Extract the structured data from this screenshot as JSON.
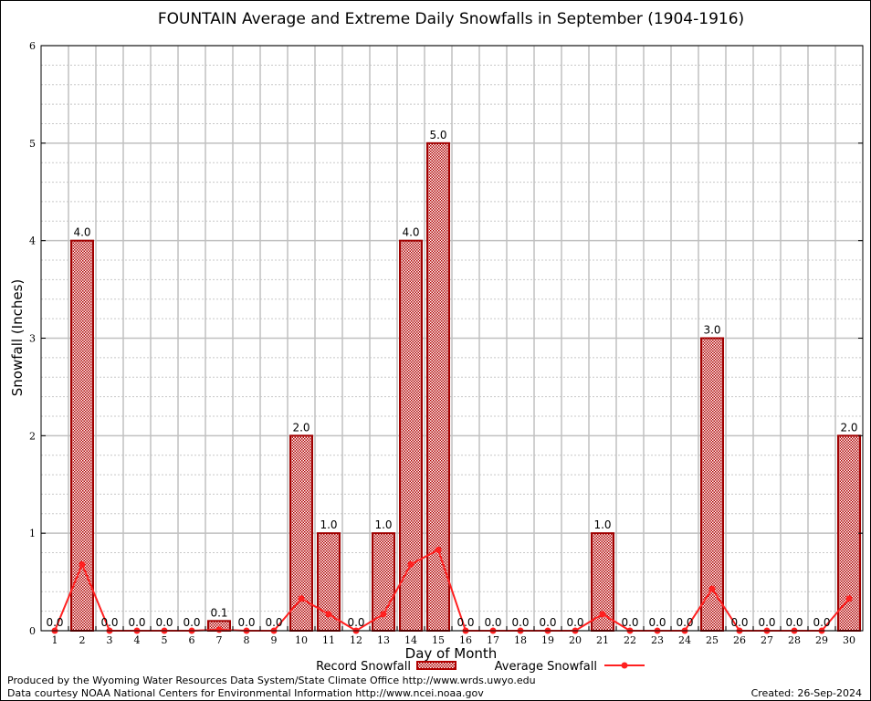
{
  "chart_data": {
    "type": "bar",
    "title": "FOUNTAIN Average and Extreme Daily Snowfalls in September (1904-1916)",
    "xlabel": "Day of Month",
    "ylabel": "Snowfall (Inches)",
    "ylim": [
      0,
      6
    ],
    "yticks": [
      0,
      1,
      2,
      3,
      4,
      5,
      6
    ],
    "grid": true,
    "legend_position": "bottom",
    "categories": [
      1,
      2,
      3,
      4,
      5,
      6,
      7,
      8,
      9,
      10,
      11,
      12,
      13,
      14,
      15,
      16,
      17,
      18,
      19,
      20,
      21,
      22,
      23,
      24,
      25,
      26,
      27,
      28,
      29,
      30
    ],
    "series": [
      {
        "name": "Record Snowfall",
        "type": "bar",
        "color": "#b00000",
        "values": [
          0,
          4,
          0,
          0,
          0,
          0,
          0.1,
          0,
          0,
          2,
          1,
          0,
          1,
          4,
          5,
          0,
          0,
          0,
          0,
          0,
          1,
          0,
          0,
          0,
          3,
          0,
          0,
          0,
          0,
          2
        ],
        "labels": [
          "0.0",
          "4.0",
          "0.0",
          "0.0",
          "0.0",
          "0.0",
          "0.1",
          "0.0",
          "0.0",
          "2.0",
          "1.0",
          "0.0",
          "1.0",
          "4.0",
          "5.0",
          "0.0",
          "0.0",
          "0.0",
          "0.0",
          "0.0",
          "1.0",
          "0.0",
          "0.0",
          "0.0",
          "3.0",
          "0.0",
          "0.0",
          "0.0",
          "0.0",
          "2.0"
        ]
      },
      {
        "name": "Average Snowfall",
        "type": "line",
        "color": "#ff2020",
        "values": [
          0,
          0.68,
          0,
          0,
          0,
          0,
          0.01,
          0,
          0,
          0.33,
          0.17,
          0,
          0.17,
          0.68,
          0.83,
          0,
          0,
          0,
          0,
          0,
          0.17,
          0,
          0,
          0,
          0.43,
          0,
          0,
          0,
          0,
          0.33
        ]
      }
    ]
  },
  "footer": {
    "line1": "Produced by the Wyoming Water Resources Data System/State Climate Office http://www.wrds.uwyo.edu",
    "line2": "Data courtesy NOAA National Centers for Environmental Information http://www.ncei.noaa.gov",
    "created": "Created: 26-Sep-2024"
  }
}
